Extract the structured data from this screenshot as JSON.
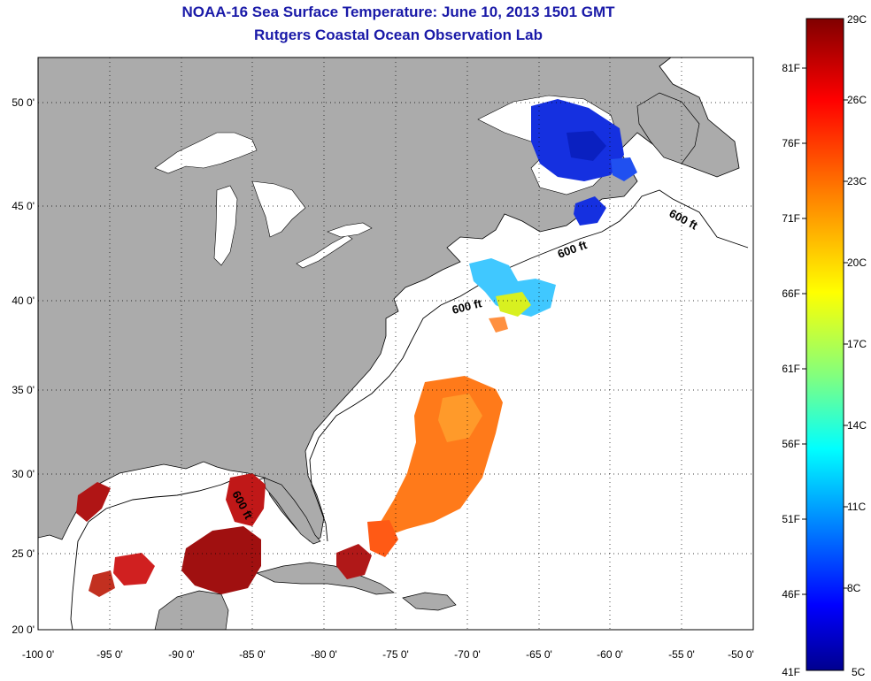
{
  "title": {
    "line1": "NOAA-16 Sea Surface Temperature:  June 10, 2013 1501 GMT",
    "line2": "Rutgers Coastal Ocean Observation Lab"
  },
  "map": {
    "lat_ticks": [
      "50 0'",
      "45 0'",
      "40 0'",
      "35 0'",
      "30 0'",
      "25 0'",
      "20 0'"
    ],
    "lon_ticks": [
      "-100 0'",
      "-95 0'",
      "-90 0'",
      "-85 0'",
      "-80 0'",
      "-75 0'",
      "-70 0'",
      "-65 0'",
      "-60 0'",
      "-55 0'",
      "-50 0'"
    ],
    "isobath_labels": [
      "600 ft",
      "600 ft",
      "600 ft",
      "600 ft"
    ],
    "colors": {
      "land": "#ababab",
      "ocean": "#ffffff",
      "grid": "#000000"
    }
  },
  "colorbar": {
    "celsius_labels": [
      "29C",
      "26C",
      "23C",
      "20C",
      "17C",
      "14C",
      "11C",
      "8C",
      "5C"
    ],
    "fahrenheit_labels": [
      "81F",
      "76F",
      "71F",
      "66F",
      "61F",
      "56F",
      "51F",
      "46F",
      "41F"
    ],
    "stops": [
      "#800000",
      "#ff0000",
      "#ff8000",
      "#ffff00",
      "#80ff80",
      "#00ffff",
      "#0080ff",
      "#0000ff",
      "#00008f"
    ]
  }
}
